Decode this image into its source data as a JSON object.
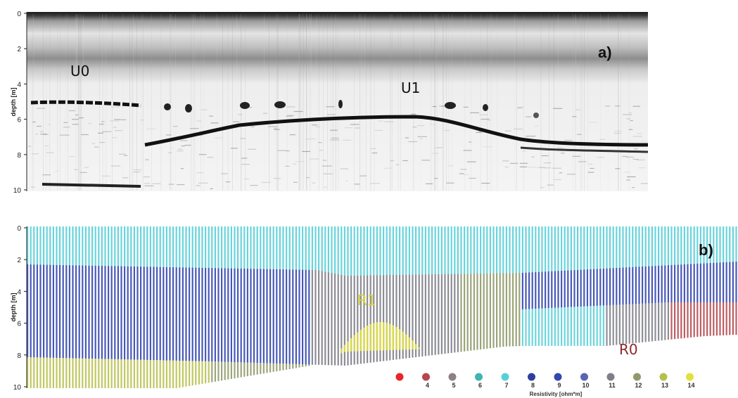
{
  "panel_a": {
    "label": "a)",
    "ylabel": "depth [m]",
    "yticks": [
      "0",
      "2",
      "4",
      "6",
      "8",
      "10"
    ],
    "annotations": [
      {
        "text": "U0",
        "color": "#111111"
      },
      {
        "text": "U1",
        "color": "#111111"
      }
    ]
  },
  "panel_b": {
    "label": "b)",
    "ylabel": "depth [m]",
    "yticks": [
      "0",
      "2",
      "4",
      "6",
      "8",
      "10"
    ],
    "annotations": [
      {
        "text": "R1",
        "color": "#d9d630"
      },
      {
        "text": "R0",
        "color": "#8b2a2a"
      }
    ]
  },
  "legend": {
    "title": "Resistivity [ohm*m]",
    "items": [
      {
        "label": "",
        "color": "#e8262a"
      },
      {
        "label": "4",
        "color": "#b5474d"
      },
      {
        "label": "5",
        "color": "#8d7f86"
      },
      {
        "label": "6",
        "color": "#3fb4b0"
      },
      {
        "label": "7",
        "color": "#58cfd8"
      },
      {
        "label": "8",
        "color": "#2e3f9e"
      },
      {
        "label": "9",
        "color": "#3346b0"
      },
      {
        "label": "10",
        "color": "#5865b2"
      },
      {
        "label": "11",
        "color": "#7f7f8a"
      },
      {
        "label": "12",
        "color": "#8f9a6a"
      },
      {
        "label": "13",
        "color": "#b7bf4a"
      },
      {
        "label": "14",
        "color": "#e2e03a"
      }
    ]
  }
}
